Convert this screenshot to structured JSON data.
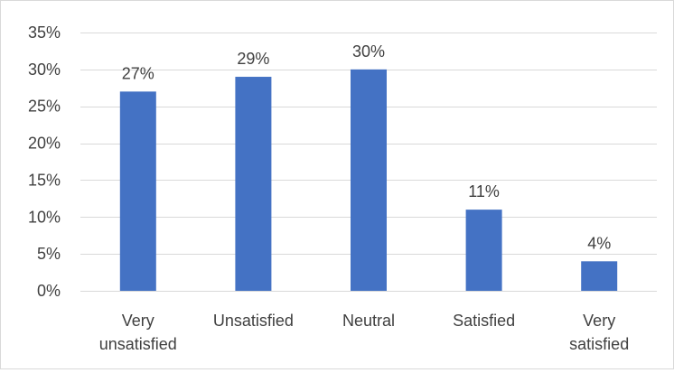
{
  "chart_data": {
    "type": "bar",
    "title": "",
    "xlabel": "",
    "ylabel": "",
    "categories": [
      [
        "Very",
        "unsatisfied"
      ],
      [
        "Unsatisfied"
      ],
      [
        "Neutral"
      ],
      [
        "Satisfied"
      ],
      [
        "Very",
        "satisfied"
      ]
    ],
    "values": [
      27,
      29,
      30,
      11,
      4
    ],
    "data_labels": [
      "27%",
      "29%",
      "30%",
      "11%",
      "4%"
    ],
    "y_ticks": [
      0,
      5,
      10,
      15,
      20,
      25,
      30,
      35
    ],
    "y_tick_labels": [
      "0%",
      "5%",
      "10%",
      "15%",
      "20%",
      "25%",
      "30%",
      "35%"
    ],
    "ylim": [
      0,
      35
    ],
    "grid": true,
    "legend": "none",
    "bar_color": "#4472C4",
    "grid_color": "#d9d9d9"
  }
}
